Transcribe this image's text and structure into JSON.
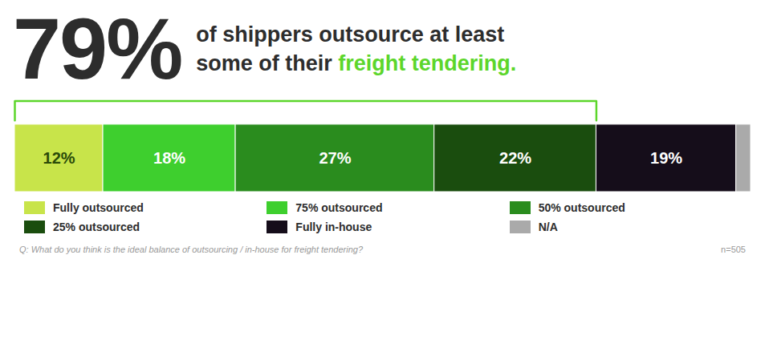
{
  "chart_data": {
    "type": "bar",
    "orientation": "horizontal",
    "stacked": true,
    "data_labels": true,
    "tick_labels": false,
    "legend": "bottom",
    "grid": false,
    "title": "79%",
    "subtitle": [
      [
        {
          "text": "of shippers outsource at least"
        }
      ],
      [
        {
          "text": "some of their "
        },
        {
          "text": "freight tendering.",
          "color": "#5cd62b"
        }
      ]
    ],
    "xlim": [
      0,
      100
    ],
    "series": [
      {
        "name": "Fully outsourced",
        "color": "#c8e44a",
        "values": [
          12
        ],
        "value_labels": [
          "12%"
        ]
      },
      {
        "name": "75% outsourced",
        "color": "#3ecf2e",
        "values": [
          18
        ],
        "value_labels": [
          "18%"
        ]
      },
      {
        "name": "50% outsourced",
        "color": "#2a8c1e",
        "values": [
          27
        ],
        "value_labels": [
          "27%"
        ]
      },
      {
        "name": "25% outsourced",
        "color": "#1a4d0e",
        "values": [
          22
        ],
        "value_labels": [
          "22%"
        ]
      },
      {
        "name": "Fully in-house",
        "color": "#150d1a",
        "values": [
          19
        ],
        "value_labels": [
          "19%"
        ]
      },
      {
        "name": "N/A",
        "color": "#aaaaaa",
        "values": [
          2
        ],
        "value_labels": [
          null
        ]
      }
    ],
    "annotations": [
      {
        "type": "bracket",
        "from": 0,
        "to": 79,
        "color": "#5cd62b"
      },
      {
        "type": "note",
        "text": "Q: What do you think is the ideal balance of outsourcing / in-house for freight tendering?"
      },
      {
        "type": "note",
        "text": "n=505"
      }
    ]
  }
}
